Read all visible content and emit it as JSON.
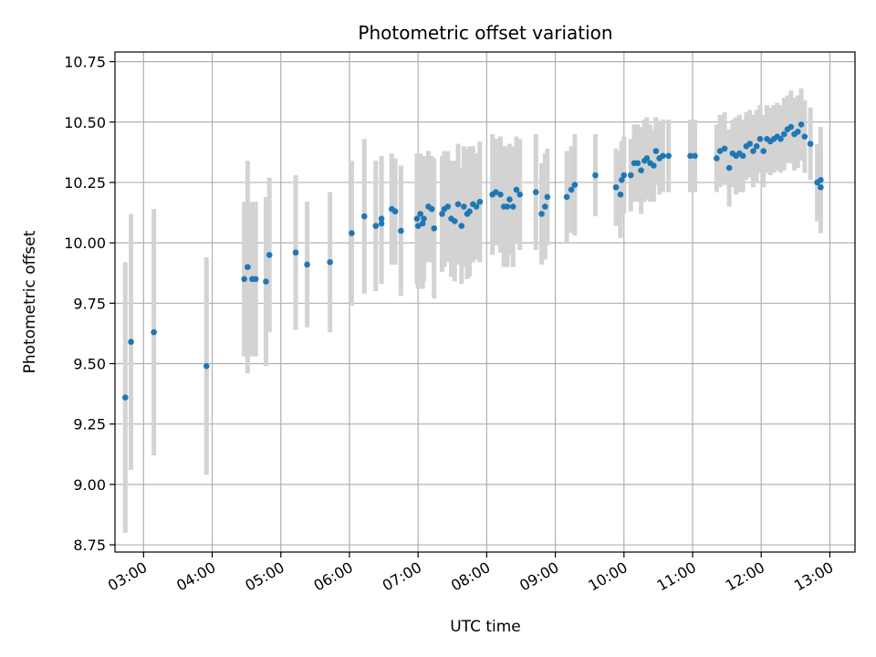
{
  "chart_data": {
    "type": "scatter",
    "title": "Photometric offset variation",
    "xlabel": "UTC time",
    "ylabel": "Photometric offset",
    "x_tick_labels": [
      "03:00",
      "04:00",
      "05:00",
      "06:00",
      "07:00",
      "08:00",
      "09:00",
      "10:00",
      "11:00",
      "12:00",
      "13:00"
    ],
    "y_tick_labels": [
      "8.75",
      "9.00",
      "9.25",
      "9.50",
      "9.75",
      "10.00",
      "10.25",
      "10.50",
      "10.75"
    ],
    "xlim": [
      "02:35",
      "13:22"
    ],
    "ylim": [
      8.72,
      10.79
    ],
    "grid": true,
    "colors": {
      "points": "#1f77b4",
      "errorbars": "#d3d3d3",
      "grid": "#b0b0b0"
    },
    "series": [
      {
        "x": [
          "02:44",
          "02:49",
          "03:09",
          "03:55",
          "04:28",
          "04:31",
          "04:35",
          "04:38",
          "04:47",
          "04:50",
          "05:13",
          "05:23",
          "05:43",
          "06:02",
          "06:13",
          "06:23",
          "06:28",
          "06:28",
          "06:37",
          "06:40",
          "06:45",
          "06:59",
          "07:00",
          "07:02",
          "07:04",
          "07:05",
          "07:09",
          "07:12",
          "07:14",
          "07:21",
          "07:23",
          "07:26",
          "07:29",
          "07:32",
          "07:35",
          "07:38",
          "07:40",
          "07:43",
          "07:45",
          "07:48",
          "07:51",
          "07:54",
          "08:05",
          "08:08",
          "08:12",
          "08:15",
          "08:18",
          "08:20",
          "08:23",
          "08:26",
          "08:29",
          "08:43",
          "08:48",
          "08:51",
          "08:53",
          "09:10",
          "09:14",
          "09:17",
          "09:35",
          "09:53",
          "09:57",
          "09:58",
          "10:00",
          "10:06",
          "10:09",
          "10:12",
          "10:15",
          "10:18",
          "10:20",
          "10:23",
          "10:26",
          "10:28",
          "10:31",
          "10:34",
          "10:39",
          "10:58",
          "11:02",
          "11:21",
          "11:24",
          "11:28",
          "11:32",
          "11:35",
          "11:38",
          "11:41",
          "11:44",
          "11:47",
          "11:50",
          "11:53",
          "11:56",
          "11:59",
          "12:02",
          "12:05",
          "12:08",
          "12:11",
          "12:14",
          "12:17",
          "12:20",
          "12:23",
          "12:26",
          "12:29",
          "12:32",
          "12:35",
          "12:38",
          "12:43",
          "12:49",
          "12:52",
          "12:52"
        ],
        "y": [
          9.36,
          9.59,
          9.63,
          9.49,
          9.85,
          9.9,
          9.85,
          9.85,
          9.84,
          9.95,
          9.96,
          9.91,
          9.92,
          10.04,
          10.11,
          10.07,
          10.08,
          10.1,
          10.14,
          10.13,
          10.05,
          10.1,
          10.07,
          10.12,
          10.08,
          10.1,
          10.15,
          10.14,
          10.06,
          10.12,
          10.14,
          10.15,
          10.1,
          10.09,
          10.16,
          10.07,
          10.15,
          10.12,
          10.13,
          10.16,
          10.15,
          10.17,
          10.2,
          10.21,
          10.2,
          10.15,
          10.15,
          10.18,
          10.15,
          10.22,
          10.2,
          10.21,
          10.12,
          10.15,
          10.19,
          10.19,
          10.22,
          10.24,
          10.28,
          10.23,
          10.2,
          10.26,
          10.28,
          10.28,
          10.33,
          10.33,
          10.3,
          10.34,
          10.35,
          10.33,
          10.32,
          10.38,
          10.35,
          10.36,
          10.36,
          10.36,
          10.36,
          10.35,
          10.38,
          10.39,
          10.31,
          10.37,
          10.36,
          10.37,
          10.36,
          10.4,
          10.41,
          10.38,
          10.4,
          10.43,
          10.38,
          10.43,
          10.42,
          10.43,
          10.44,
          10.43,
          10.45,
          10.47,
          10.48,
          10.45,
          10.46,
          10.49,
          10.44,
          10.41,
          10.25,
          10.23,
          10.26
        ],
        "err": [
          0.56,
          0.53,
          0.51,
          0.45,
          0.32,
          0.44,
          0.32,
          0.32,
          0.35,
          0.32,
          0.32,
          0.26,
          0.29,
          0.3,
          0.32,
          0.27,
          0.25,
          0.26,
          0.23,
          0.22,
          0.27,
          0.27,
          0.26,
          0.25,
          0.27,
          0.26,
          0.23,
          0.22,
          0.29,
          0.24,
          0.24,
          0.23,
          0.24,
          0.25,
          0.25,
          0.24,
          0.25,
          0.27,
          0.27,
          0.24,
          0.22,
          0.25,
          0.25,
          0.22,
          0.24,
          0.25,
          0.25,
          0.23,
          0.25,
          0.22,
          0.23,
          0.24,
          0.21,
          0.22,
          0.2,
          0.19,
          0.18,
          0.21,
          0.17,
          0.16,
          0.18,
          0.16,
          0.16,
          0.15,
          0.16,
          0.16,
          0.18,
          0.17,
          0.17,
          0.16,
          0.15,
          0.14,
          0.15,
          0.15,
          0.15,
          0.15,
          0.15,
          0.14,
          0.15,
          0.15,
          0.16,
          0.14,
          0.16,
          0.16,
          0.15,
          0.14,
          0.14,
          0.15,
          0.15,
          0.14,
          0.15,
          0.14,
          0.14,
          0.14,
          0.14,
          0.14,
          0.15,
          0.14,
          0.15,
          0.15,
          0.15,
          0.15,
          0.15,
          0.15,
          0.16,
          0.18,
          0.22
        ]
      }
    ]
  }
}
